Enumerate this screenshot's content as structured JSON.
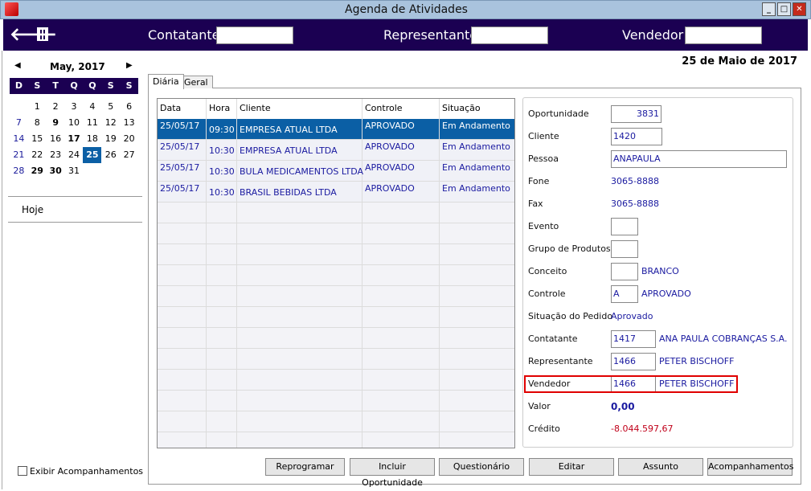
{
  "window": {
    "title": "Agenda de Atividades",
    "app_icon": "app-logo-icon",
    "controls": [
      "minimize",
      "maximize",
      "close"
    ]
  },
  "header": {
    "back_icon": "arrow-left-icon",
    "trash_icon": "trash-icon",
    "contatante_label": "Contatante",
    "contatante_value": "",
    "representante_label": "Representante",
    "representante_value": "",
    "vendedor_label": "Vendedor",
    "vendedor_value": ""
  },
  "calendar": {
    "month": "May, 2017",
    "days_of_week": [
      "D",
      "S",
      "T",
      "Q",
      "Q",
      "S",
      "S"
    ],
    "weeks": [
      [
        "",
        "1",
        "2",
        "3",
        "4",
        "5",
        "6"
      ],
      [
        "7",
        "8",
        "9",
        "10",
        "11",
        "12",
        "13"
      ],
      [
        "14",
        "15",
        "16",
        "17",
        "18",
        "19",
        "20"
      ],
      [
        "21",
        "22",
        "23",
        "24",
        "25",
        "26",
        "27"
      ],
      [
        "28",
        "29",
        "30",
        "31",
        "",
        "",
        ""
      ]
    ],
    "bold_days": [
      "9",
      "17",
      "29",
      "30"
    ],
    "selected_day": "25"
  },
  "sidebar": {
    "today": "Hoje",
    "show_followups": "Exibir Acompanhamentos",
    "show_followups_checked": false
  },
  "date_heading": "25 de Maio de 2017",
  "tabs": [
    {
      "label": "Diária",
      "active": true
    },
    {
      "label": "Geral",
      "active": false
    }
  ],
  "grid": {
    "columns": [
      "Data",
      "Hora",
      "Cliente",
      "Controle",
      "Situação"
    ],
    "rows": [
      {
        "data": "25/05/17",
        "hora": "09:30",
        "cliente": "EMPRESA ATUAL LTDA",
        "controle": "APROVADO",
        "situacao": "Em Andamento",
        "selected": true
      },
      {
        "data": "25/05/17",
        "hora": "10:30",
        "cliente": "EMPRESA ATUAL LTDA",
        "controle": "APROVADO",
        "situacao": "Em Andamento"
      },
      {
        "data": "25/05/17",
        "hora": "10:30",
        "cliente": "BULA MEDICAMENTOS LTDA",
        "controle": "APROVADO",
        "situacao": "Em Andamento"
      },
      {
        "data": "25/05/17",
        "hora": "10:30",
        "cliente": "BRASIL BEBIDAS LTDA",
        "controle": "APROVADO",
        "situacao": "Em Andamento"
      }
    ]
  },
  "detail": {
    "oportunidade": {
      "label": "Oportunidade",
      "value": "3831"
    },
    "cliente": {
      "label": "Cliente",
      "value": "1420"
    },
    "pessoa": {
      "label": "Pessoa",
      "value": "ANAPAULA"
    },
    "fone": {
      "label": "Fone",
      "value": "3065-8888"
    },
    "fax": {
      "label": "Fax",
      "value": "3065-8888"
    },
    "evento": {
      "label": "Evento",
      "value": ""
    },
    "grupo": {
      "label": "Grupo de Produtos",
      "value": ""
    },
    "conceito": {
      "label": "Conceito",
      "value": "",
      "desc": "BRANCO"
    },
    "controle": {
      "label": "Controle",
      "value": "A",
      "desc": "APROVADO"
    },
    "situacao": {
      "label": "Situação do Pedido",
      "value": "Aprovado"
    },
    "contatante": {
      "label": "Contatante",
      "value": "1417",
      "desc": "ANA PAULA COBRANÇAS S.A."
    },
    "representante": {
      "label": "Representante",
      "value": "1466",
      "desc": "PETER BISCHOFF"
    },
    "vendedor": {
      "label": "Vendedor",
      "value": "1466",
      "desc": "PETER BISCHOFF"
    },
    "valor": {
      "label": "Valor",
      "value": "0,00"
    },
    "credito": {
      "label": "Crédito",
      "value": "-8.044.597,67"
    }
  },
  "buttons": {
    "reprogramar": "Reprogramar",
    "incluir": "Incluir Oportunidade",
    "questionario": "Questionário",
    "editar": "Editar",
    "assunto": "Assunto",
    "acompanhamentos": "Acompanhamentos"
  },
  "colors": {
    "header": "#1b0052",
    "selection": "#0b5fa5",
    "value_text": "#1a1aa0",
    "credit": "#c0001a",
    "highlight_border": "#e00000"
  }
}
